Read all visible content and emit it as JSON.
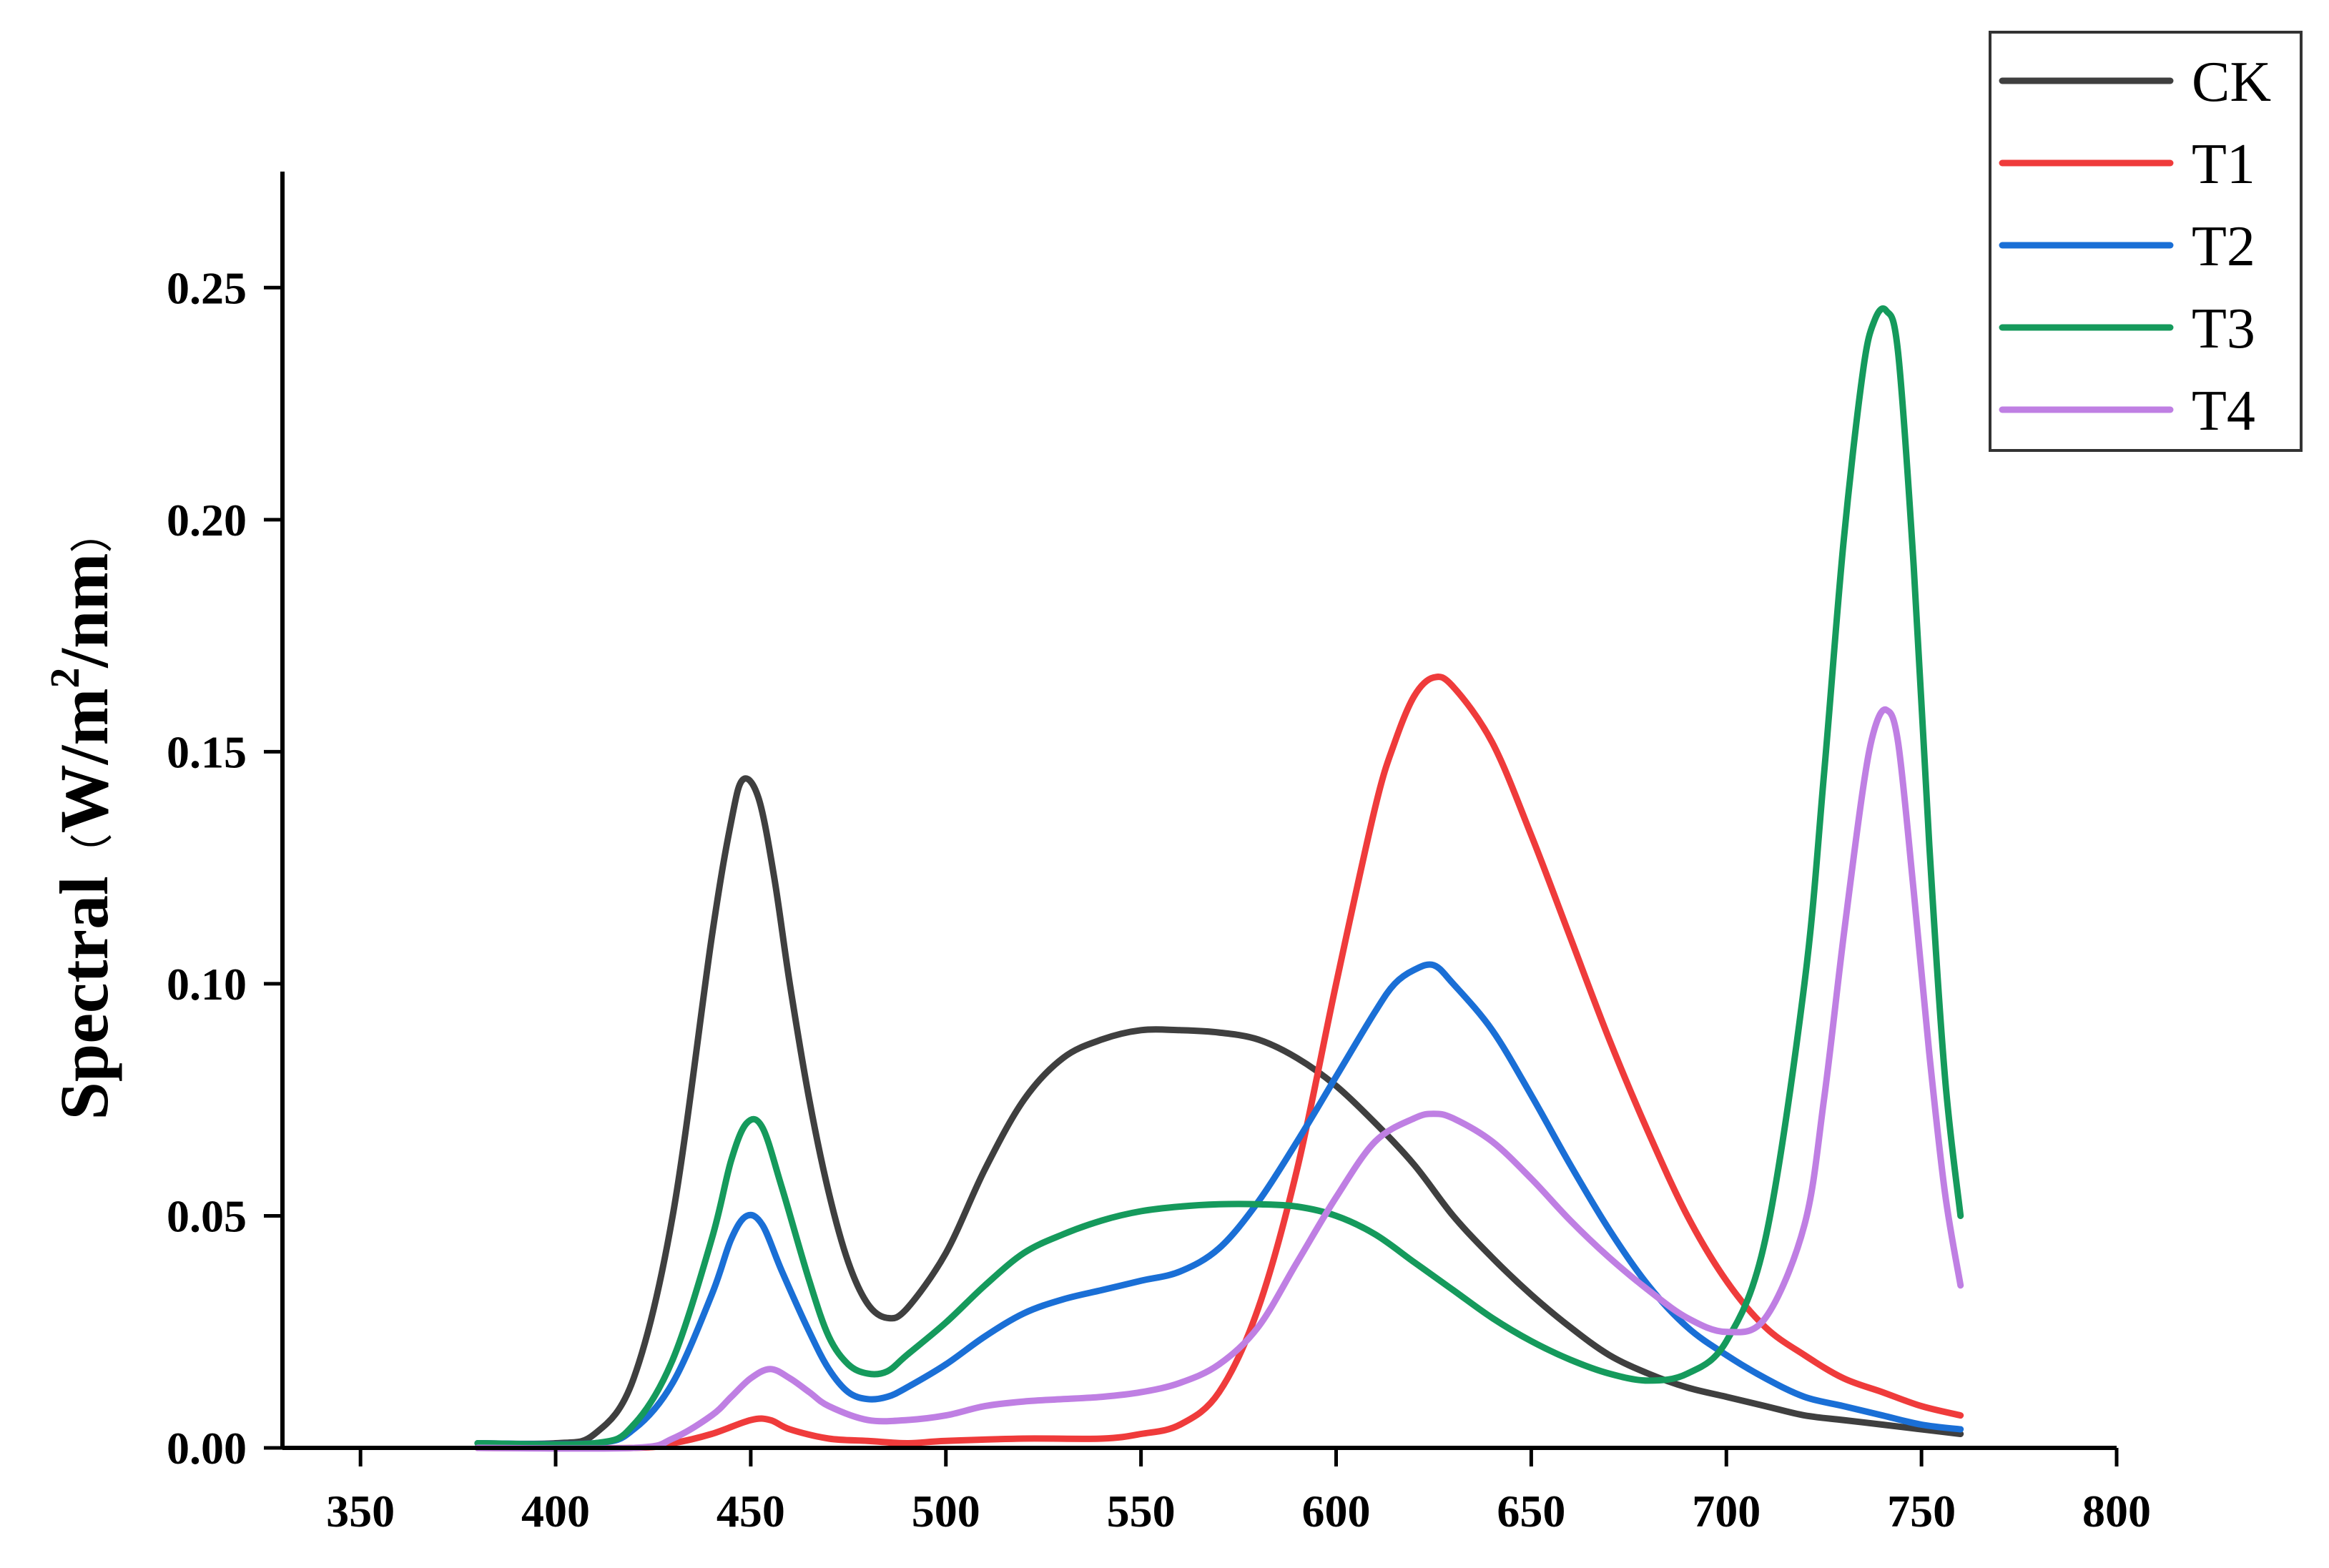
{
  "chart_data": {
    "type": "line",
    "title": "",
    "xlabel": "",
    "ylabel_parts": [
      "Spectral",
      "（",
      "W/m",
      "2",
      "/nm",
      "）"
    ],
    "xlim": [
      330,
      800
    ],
    "ylim": [
      0,
      0.275
    ],
    "x_ticks": [
      350,
      400,
      450,
      500,
      550,
      600,
      650,
      700,
      750,
      800
    ],
    "x_tick_labels": [
      "350",
      "400",
      "450",
      "500",
      "550",
      "600",
      "650",
      "700",
      "750",
      "800"
    ],
    "y_ticks": [
      0,
      0.05,
      0.1,
      0.15,
      0.2,
      0.25
    ],
    "y_tick_labels": [
      "0.00",
      "0.05",
      "0.10",
      "0.15",
      "0.20",
      "0.25"
    ],
    "grid": false,
    "legend_position": "top-right",
    "series": [
      {
        "name": "CK",
        "color": "#3f3f3f",
        "x": [
          380,
          400,
          410,
          420,
          430,
          440,
          445,
          448,
          452,
          456,
          460,
          465,
          470,
          475,
          480,
          485,
          490,
          500,
          510,
          520,
          530,
          540,
          550,
          560,
          570,
          580,
          590,
          600,
          610,
          620,
          630,
          640,
          650,
          660,
          670,
          680,
          690,
          700,
          710,
          720,
          730,
          740,
          750,
          760
        ],
        "y": [
          0.001,
          0.001,
          0.003,
          0.015,
          0.05,
          0.11,
          0.135,
          0.144,
          0.14,
          0.123,
          0.1,
          0.075,
          0.055,
          0.04,
          0.031,
          0.028,
          0.03,
          0.042,
          0.06,
          0.075,
          0.084,
          0.088,
          0.09,
          0.09,
          0.0895,
          0.088,
          0.084,
          0.078,
          0.07,
          0.061,
          0.05,
          0.041,
          0.033,
          0.026,
          0.02,
          0.016,
          0.013,
          0.011,
          0.009,
          0.007,
          0.006,
          0.005,
          0.004,
          0.003
        ]
      },
      {
        "name": "T1",
        "color": "#ef3b3b",
        "x": [
          380,
          420,
          430,
          440,
          450,
          455,
          460,
          470,
          480,
          490,
          500,
          520,
          540,
          550,
          560,
          570,
          580,
          590,
          600,
          610,
          615,
          620,
          625,
          630,
          640,
          650,
          660,
          670,
          680,
          690,
          700,
          710,
          720,
          730,
          740,
          750,
          760
        ],
        "y": [
          0.0,
          0.0,
          0.001,
          0.003,
          0.006,
          0.006,
          0.004,
          0.002,
          0.0015,
          0.001,
          0.0015,
          0.002,
          0.002,
          0.003,
          0.005,
          0.012,
          0.03,
          0.06,
          0.1,
          0.138,
          0.152,
          0.162,
          0.166,
          0.164,
          0.152,
          0.132,
          0.11,
          0.088,
          0.068,
          0.05,
          0.036,
          0.026,
          0.02,
          0.015,
          0.012,
          0.009,
          0.007
        ]
      },
      {
        "name": "T2",
        "color": "#1a6fd6",
        "x": [
          380,
          410,
          420,
          430,
          440,
          445,
          449,
          453,
          458,
          465,
          470,
          475,
          480,
          485,
          490,
          500,
          510,
          520,
          530,
          540,
          550,
          560,
          570,
          580,
          590,
          600,
          610,
          615,
          620,
          625,
          630,
          640,
          650,
          660,
          670,
          680,
          690,
          700,
          710,
          720,
          730,
          740,
          750,
          760
        ],
        "y": [
          0.001,
          0.001,
          0.004,
          0.014,
          0.033,
          0.045,
          0.05,
          0.048,
          0.038,
          0.025,
          0.017,
          0.012,
          0.0105,
          0.011,
          0.013,
          0.018,
          0.024,
          0.029,
          0.032,
          0.034,
          0.036,
          0.038,
          0.043,
          0.053,
          0.066,
          0.08,
          0.094,
          0.1,
          0.103,
          0.104,
          0.1,
          0.09,
          0.076,
          0.061,
          0.047,
          0.035,
          0.026,
          0.02,
          0.015,
          0.011,
          0.009,
          0.007,
          0.005,
          0.004
        ]
      },
      {
        "name": "T3",
        "color": "#159a5c",
        "x": [
          380,
          410,
          420,
          430,
          440,
          445,
          449,
          453,
          458,
          465,
          470,
          475,
          480,
          485,
          490,
          500,
          510,
          520,
          530,
          540,
          550,
          560,
          570,
          580,
          590,
          600,
          610,
          620,
          630,
          640,
          650,
          660,
          670,
          680,
          690,
          700,
          710,
          720,
          725,
          730,
          735,
          738,
          741,
          744,
          748,
          752,
          756,
          760
        ],
        "y": [
          0.001,
          0.001,
          0.005,
          0.019,
          0.045,
          0.062,
          0.07,
          0.069,
          0.056,
          0.036,
          0.024,
          0.018,
          0.016,
          0.0165,
          0.02,
          0.027,
          0.035,
          0.042,
          0.046,
          0.049,
          0.051,
          0.052,
          0.0525,
          0.0525,
          0.052,
          0.05,
          0.046,
          0.04,
          0.034,
          0.028,
          0.023,
          0.019,
          0.016,
          0.0145,
          0.016,
          0.023,
          0.045,
          0.1,
          0.145,
          0.195,
          0.232,
          0.243,
          0.245,
          0.236,
          0.19,
          0.13,
          0.08,
          0.05
        ]
      },
      {
        "name": "T4",
        "color": "#bf7fe3",
        "x": [
          380,
          420,
          430,
          440,
          445,
          450,
          455,
          460,
          465,
          470,
          480,
          490,
          500,
          510,
          520,
          530,
          540,
          550,
          560,
          570,
          580,
          590,
          600,
          610,
          620,
          625,
          630,
          640,
          650,
          660,
          670,
          680,
          690,
          700,
          710,
          720,
          725,
          730,
          735,
          738,
          741,
          744,
          748,
          752,
          756,
          760
        ],
        "y": [
          0.0,
          0.0,
          0.002,
          0.007,
          0.011,
          0.015,
          0.017,
          0.015,
          0.012,
          0.009,
          0.006,
          0.006,
          0.007,
          0.009,
          0.01,
          0.0105,
          0.011,
          0.012,
          0.014,
          0.018,
          0.026,
          0.04,
          0.054,
          0.066,
          0.071,
          0.072,
          0.071,
          0.066,
          0.058,
          0.049,
          0.041,
          0.034,
          0.028,
          0.025,
          0.028,
          0.048,
          0.075,
          0.11,
          0.142,
          0.155,
          0.159,
          0.152,
          0.12,
          0.085,
          0.055,
          0.035
        ]
      }
    ]
  }
}
